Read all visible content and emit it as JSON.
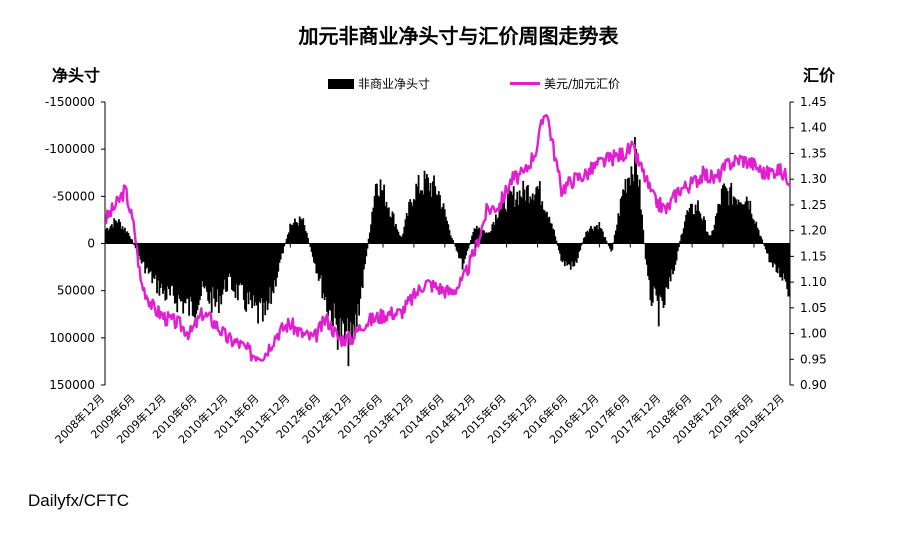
{
  "chart_data": {
    "type": "bar+line",
    "title": "加元非商业净头寸与汇价周图走势表",
    "y_left_label": "净头寸",
    "y_right_label": "汇价",
    "y_left_ticks": [
      "-150000",
      "-100000",
      "-50000",
      "0",
      "50000",
      "100000",
      "150000"
    ],
    "y_left_range": [
      150000,
      -150000
    ],
    "y_right_ticks": [
      "1.45",
      "1.40",
      "1.35",
      "1.30",
      "1.25",
      "1.20",
      "1.15",
      "1.10",
      "1.05",
      "1.00",
      "0.95",
      "0.90"
    ],
    "y_right_range": [
      0.9,
      1.45
    ],
    "x_range": [
      2008.92,
      2020.0
    ],
    "x_ticks": [
      "2008年12月",
      "2009年6月",
      "2009年12月",
      "2010年6月",
      "2010年12月",
      "2011年6月",
      "2011年12月",
      "2012年6月",
      "2012年12月",
      "2013年6月",
      "2013年12月",
      "2014年6月",
      "2014年12月",
      "2015年6月",
      "2015年12月",
      "2016年6月",
      "2016年12月",
      "2017年6月",
      "2017年12月",
      "2018年6月",
      "2018年12月",
      "2019年6月",
      "2019年12月"
    ],
    "series": [
      {
        "name": "非商业净头寸",
        "type": "bar",
        "color": "#000000",
        "x": [
          2008.92,
          2009.1,
          2009.3,
          2009.5,
          2009.7,
          2009.9,
          2010.1,
          2010.3,
          2010.5,
          2010.7,
          2010.9,
          2011.1,
          2011.3,
          2011.5,
          2011.7,
          2011.9,
          2012.1,
          2012.3,
          2012.5,
          2012.7,
          2012.9,
          2013.1,
          2013.3,
          2013.5,
          2013.7,
          2013.9,
          2014.1,
          2014.3,
          2014.5,
          2014.7,
          2014.9,
          2015.1,
          2015.3,
          2015.5,
          2015.7,
          2015.9,
          2016.1,
          2016.3,
          2016.5,
          2016.7,
          2016.9,
          2017.1,
          2017.3,
          2017.5,
          2017.7,
          2017.9,
          2018.1,
          2018.3,
          2018.5,
          2018.7,
          2018.9,
          2019.1,
          2019.3,
          2019.5,
          2019.7,
          2019.9,
          2020.0
        ],
        "values": [
          -15000,
          -25000,
          -10000,
          20000,
          40000,
          55000,
          60000,
          70000,
          50000,
          65000,
          40000,
          55000,
          70000,
          80000,
          30000,
          -20000,
          -25000,
          20000,
          65000,
          95000,
          110000,
          30000,
          -70000,
          -40000,
          -5000,
          -55000,
          -65000,
          -55000,
          -10000,
          25000,
          -20000,
          -10000,
          -40000,
          -50000,
          -55000,
          -60000,
          -30000,
          20000,
          25000,
          -15000,
          -20000,
          10000,
          -60000,
          -95000,
          50000,
          75000,
          30000,
          -30000,
          -40000,
          -5000,
          -55000,
          -50000,
          -50000,
          -10000,
          25000,
          35000,
          55000
        ]
      },
      {
        "name": "美元/加元汇价",
        "type": "line",
        "color": "#e020d0",
        "x": [
          2008.92,
          2009.1,
          2009.25,
          2009.4,
          2009.5,
          2009.7,
          2009.9,
          2010.1,
          2010.3,
          2010.5,
          2010.7,
          2010.9,
          2011.1,
          2011.3,
          2011.5,
          2011.7,
          2011.9,
          2012.1,
          2012.3,
          2012.5,
          2012.7,
          2012.9,
          2013.1,
          2013.3,
          2013.5,
          2013.7,
          2013.9,
          2014.1,
          2014.3,
          2014.5,
          2014.7,
          2014.9,
          2015.1,
          2015.3,
          2015.5,
          2015.7,
          2015.9,
          2016.05,
          2016.3,
          2016.5,
          2016.7,
          2016.9,
          2017.1,
          2017.3,
          2017.45,
          2017.6,
          2017.8,
          2018.0,
          2018.2,
          2018.4,
          2018.6,
          2018.8,
          2019.0,
          2019.2,
          2019.4,
          2019.6,
          2019.8,
          2020.0
        ],
        "values": [
          1.22,
          1.25,
          1.28,
          1.2,
          1.1,
          1.05,
          1.03,
          1.02,
          1.0,
          1.04,
          1.02,
          0.99,
          0.98,
          0.96,
          0.96,
          1.0,
          1.02,
          1.0,
          0.99,
          1.03,
          0.99,
          0.99,
          1.02,
          1.03,
          1.04,
          1.04,
          1.07,
          1.1,
          1.09,
          1.08,
          1.1,
          1.16,
          1.24,
          1.25,
          1.3,
          1.31,
          1.36,
          1.44,
          1.28,
          1.3,
          1.31,
          1.33,
          1.34,
          1.35,
          1.36,
          1.32,
          1.26,
          1.24,
          1.28,
          1.29,
          1.31,
          1.3,
          1.33,
          1.34,
          1.33,
          1.31,
          1.32,
          1.3
        ]
      }
    ]
  },
  "source": "Dailyfx/CFTC"
}
